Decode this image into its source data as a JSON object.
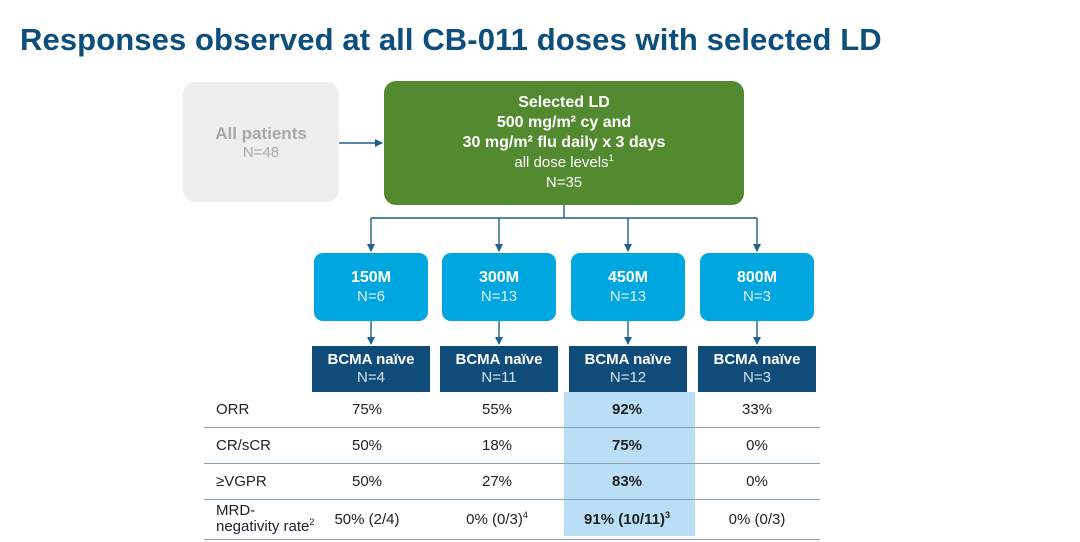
{
  "title": "Responses observed at all CB-011 doses with selected LD",
  "all_patients": {
    "label": "All patients",
    "n": "N=48"
  },
  "selected_ld": {
    "line1": "Selected LD",
    "line2": "500 mg/m² cy and",
    "line3": "30 mg/m² flu daily x 3 days",
    "line4": "all dose levels",
    "line4_sup": "1",
    "n": "N=35"
  },
  "doses": [
    {
      "label": "150M",
      "n": "N=6"
    },
    {
      "label": "300M",
      "n": "N=13"
    },
    {
      "label": "450M",
      "n": "N=13"
    },
    {
      "label": "800M",
      "n": "N=3"
    }
  ],
  "bcma": [
    {
      "label": "BCMA naïve",
      "n": "N=4"
    },
    {
      "label": "BCMA naïve",
      "n": "N=11"
    },
    {
      "label": "BCMA naïve",
      "n": "N=12"
    },
    {
      "label": "BCMA naïve",
      "n": "N=3"
    }
  ],
  "table": {
    "rows": [
      {
        "label": "ORR",
        "values": [
          "75%",
          "55%",
          "92%",
          "33%"
        ]
      },
      {
        "label": "CR/sCR",
        "values": [
          "50%",
          "18%",
          "75%",
          "0%"
        ]
      },
      {
        "label": "≥VGPR",
        "values": [
          "50%",
          "27%",
          "83%",
          "0%"
        ]
      },
      {
        "label_line1": "MRD-",
        "label_line2": "negativity rate",
        "label_sup": "2",
        "values": [
          "50% (2/4)",
          "0% (0/3)",
          "91% (10/11)",
          "0% (0/3)"
        ],
        "sups": [
          "",
          "4",
          "3",
          ""
        ]
      }
    ],
    "highlight_color": "#b9def6"
  },
  "colors": {
    "title": "#0d4f7c",
    "all_patients_bg": "#eeeeee",
    "selected_ld_bg": "#548a2f",
    "dose_bg": "#00a6e0",
    "bcma_bg": "#0f4c7a",
    "connector": "#1f5f8b"
  }
}
